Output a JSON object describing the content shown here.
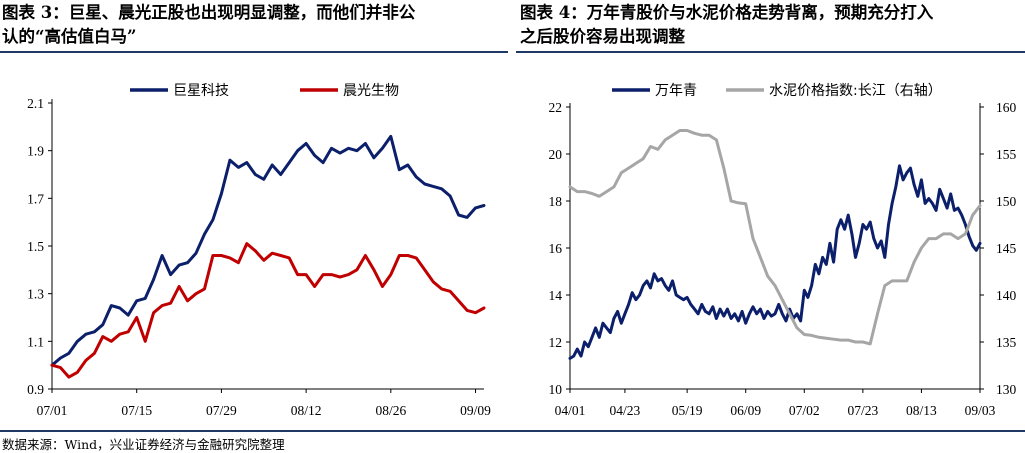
{
  "titles": {
    "left_line1": "图表 3：巨星、晨光正股也出现明显调整，而他们并非公",
    "left_line2": "认的“高估值白马”",
    "right_line1": "图表 4：万年青股价与水泥价格走势背离，预期充分打入",
    "right_line2": "之后股价容易出现调整"
  },
  "source": "数据来源：Wind，兴业证券经济与金融研究院整理",
  "colors": {
    "navy": "#0b1f6b",
    "red": "#c00000",
    "gray": "#a6a6a6",
    "rule": "#1f3864"
  },
  "chart_data": [
    {
      "type": "line",
      "x_ticks": [
        "07/01",
        "07/15",
        "07/29",
        "08/12",
        "08/26",
        "09/09"
      ],
      "x_range": [
        0,
        51
      ],
      "x_tick_positions": [
        0,
        10,
        20,
        30,
        40,
        50
      ],
      "ylim": [
        0.9,
        2.1
      ],
      "y_ticks": [
        "0.9",
        "1.1",
        "1.3",
        "1.5",
        "1.7",
        "1.9",
        "2.1"
      ],
      "legend": "top",
      "series": [
        {
          "name": "巨星科技",
          "color": "#0b1f6b",
          "x": [
            0,
            1,
            2,
            3,
            4,
            5,
            6,
            7,
            8,
            9,
            10,
            11,
            12,
            13,
            14,
            15,
            16,
            17,
            18,
            19,
            20,
            21,
            22,
            23,
            24,
            25,
            26,
            27,
            28,
            29,
            30,
            31,
            32,
            33,
            34,
            35,
            36,
            37,
            38,
            39,
            40,
            41,
            42,
            43,
            44,
            45,
            46,
            47,
            48,
            49,
            50,
            51
          ],
          "values": [
            1.0,
            1.03,
            1.05,
            1.1,
            1.13,
            1.14,
            1.17,
            1.25,
            1.24,
            1.21,
            1.27,
            1.28,
            1.36,
            1.46,
            1.38,
            1.42,
            1.43,
            1.47,
            1.55,
            1.61,
            1.72,
            1.86,
            1.83,
            1.85,
            1.8,
            1.78,
            1.84,
            1.8,
            1.85,
            1.9,
            1.93,
            1.88,
            1.85,
            1.91,
            1.89,
            1.91,
            1.9,
            1.93,
            1.87,
            1.91,
            1.96,
            1.82,
            1.84,
            1.79,
            1.76,
            1.75,
            1.74,
            1.71,
            1.63,
            1.62,
            1.66,
            1.67
          ]
        },
        {
          "name": "晨光生物",
          "color": "#c00000",
          "x": [
            0,
            1,
            2,
            3,
            4,
            5,
            6,
            7,
            8,
            9,
            10,
            11,
            12,
            13,
            14,
            15,
            16,
            17,
            18,
            19,
            20,
            21,
            22,
            23,
            24,
            25,
            26,
            27,
            28,
            29,
            30,
            31,
            32,
            33,
            34,
            35,
            36,
            37,
            38,
            39,
            40,
            41,
            42,
            43,
            44,
            45,
            46,
            47,
            48,
            49,
            50,
            51
          ],
          "values": [
            1.0,
            0.99,
            0.95,
            0.97,
            1.02,
            1.05,
            1.12,
            1.1,
            1.13,
            1.14,
            1.2,
            1.1,
            1.22,
            1.25,
            1.26,
            1.33,
            1.27,
            1.3,
            1.32,
            1.46,
            1.46,
            1.45,
            1.43,
            1.51,
            1.48,
            1.44,
            1.47,
            1.46,
            1.45,
            1.38,
            1.38,
            1.33,
            1.38,
            1.38,
            1.37,
            1.38,
            1.4,
            1.46,
            1.4,
            1.33,
            1.38,
            1.46,
            1.46,
            1.45,
            1.4,
            1.35,
            1.32,
            1.31,
            1.27,
            1.23,
            1.22,
            1.24
          ]
        }
      ]
    },
    {
      "type": "line",
      "x_ticks": [
        "04/01",
        "04/23",
        "05/19",
        "06/09",
        "07/02",
        "07/23",
        "08/13",
        "09/03"
      ],
      "x_range": [
        0,
        112
      ],
      "x_tick_positions": [
        0,
        15,
        32,
        48,
        64,
        80,
        96,
        112
      ],
      "ylim": [
        10,
        22
      ],
      "y_ticks": [
        "10",
        "12",
        "14",
        "16",
        "18",
        "20",
        "22"
      ],
      "y2lim": [
        130,
        160
      ],
      "y2_ticks": [
        "130",
        "135",
        "140",
        "145",
        "150",
        "155",
        "160"
      ],
      "legend": "top",
      "series": [
        {
          "name": "万年青",
          "axis": "left",
          "color": "#0b1f6b",
          "x": [
            0,
            1,
            2,
            3,
            4,
            5,
            6,
            7,
            8,
            9,
            10,
            11,
            12,
            13,
            14,
            15,
            16,
            17,
            18,
            19,
            20,
            21,
            22,
            23,
            24,
            25,
            26,
            27,
            28,
            29,
            30,
            31,
            32,
            33,
            34,
            35,
            36,
            37,
            38,
            39,
            40,
            41,
            42,
            43,
            44,
            45,
            46,
            47,
            48,
            49,
            50,
            51,
            52,
            53,
            54,
            55,
            56,
            57,
            58,
            59,
            60,
            61,
            62,
            63,
            64,
            65,
            66,
            67,
            68,
            69,
            70,
            71,
            72,
            73,
            74,
            75,
            76,
            77,
            78,
            79,
            80,
            81,
            82,
            83,
            84,
            85,
            86,
            87,
            88,
            89,
            90,
            91,
            92,
            93,
            94,
            95,
            96,
            97,
            98,
            99,
            100,
            101,
            102,
            103,
            104,
            105,
            106,
            107,
            108,
            109,
            110,
            111,
            112
          ],
          "values": [
            11.3,
            11.4,
            11.7,
            11.4,
            12.0,
            11.8,
            12.2,
            12.6,
            12.2,
            12.8,
            12.6,
            12.4,
            13.0,
            13.3,
            12.8,
            13.2,
            13.6,
            14.1,
            13.8,
            14.0,
            14.4,
            14.6,
            14.3,
            14.9,
            14.6,
            14.7,
            14.4,
            14.2,
            14.6,
            14.0,
            13.9,
            13.8,
            13.9,
            13.6,
            13.4,
            13.2,
            13.6,
            13.3,
            13.2,
            13.5,
            13.0,
            13.4,
            13.1,
            13.4,
            13.0,
            13.2,
            12.9,
            13.3,
            12.8,
            13.2,
            13.5,
            13.2,
            13.4,
            13.0,
            13.3,
            13.1,
            13.2,
            13.6,
            13.2,
            12.9,
            13.4,
            13.0,
            13.2,
            12.9,
            14.2,
            13.9,
            14.4,
            15.3,
            14.9,
            15.6,
            15.3,
            16.2,
            15.4,
            16.8,
            17.2,
            16.8,
            17.4,
            16.6,
            15.6,
            16.2,
            17.0,
            16.8,
            17.1,
            16.4,
            16.0,
            16.3,
            15.6,
            17.0,
            17.9,
            18.6,
            19.5,
            18.9,
            19.2,
            19.4,
            18.7,
            18.2,
            18.9,
            17.9,
            18.1,
            17.9,
            17.6,
            18.5,
            18.1,
            17.7,
            18.3,
            17.6,
            17.7,
            17.4,
            17.0,
            16.5,
            16.1,
            15.9,
            16.2
          ]
        },
        {
          "name": "水泥价格指数:长江（右轴）",
          "axis": "right",
          "color": "#a6a6a6",
          "x": [
            0,
            2,
            4,
            6,
            8,
            10,
            12,
            14,
            16,
            18,
            20,
            22,
            24,
            26,
            28,
            30,
            32,
            34,
            36,
            38,
            40,
            42,
            44,
            46,
            48,
            50,
            52,
            54,
            56,
            58,
            60,
            62,
            64,
            66,
            68,
            70,
            72,
            74,
            76,
            78,
            80,
            82,
            84,
            86,
            88,
            90,
            92,
            94,
            96,
            98,
            100,
            102,
            104,
            106,
            108,
            110,
            112
          ],
          "values": [
            151.5,
            151.0,
            151.0,
            150.8,
            150.5,
            151.0,
            151.5,
            153.0,
            153.5,
            154.0,
            154.5,
            155.8,
            155.5,
            156.5,
            157.0,
            157.5,
            157.5,
            157.2,
            157.0,
            157.0,
            156.5,
            153.5,
            150.0,
            149.8,
            149.7,
            146.0,
            144.0,
            142.0,
            141.0,
            139.5,
            138.0,
            136.5,
            135.8,
            135.7,
            135.5,
            135.4,
            135.3,
            135.2,
            135.2,
            135.0,
            135.0,
            134.8,
            138.0,
            141.0,
            141.5,
            141.5,
            141.5,
            143.5,
            145.0,
            146.0,
            146.0,
            146.5,
            146.5,
            146.0,
            146.5,
            148.5,
            149.5
          ]
        }
      ]
    }
  ]
}
